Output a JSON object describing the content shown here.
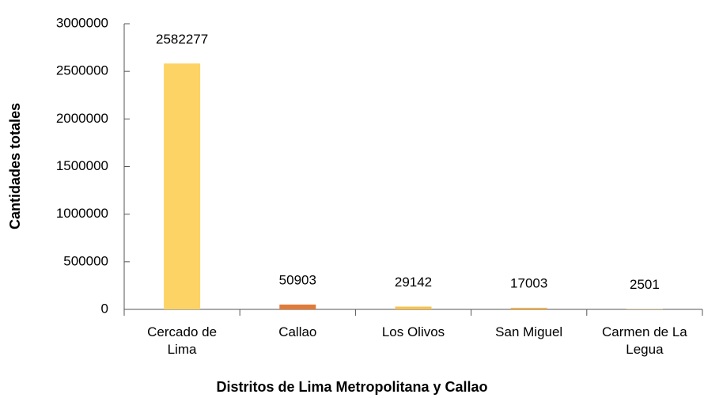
{
  "chart_data": {
    "type": "bar",
    "x_label": "Distritos de Lima Metropolitana y Callao",
    "y_label": "Cantidades totales",
    "categories": [
      "Cercado de Lima",
      "Callao",
      "Los Olivos",
      "San Miguel",
      "Carmen de La Legua"
    ],
    "values": [
      2582277,
      50903,
      29142,
      17003,
      2501
    ],
    "colors": [
      "#fdd365",
      "#e07b39",
      "#f6c24f",
      "#f2b14a",
      "#f8d35e"
    ],
    "ylim": [
      0,
      3000000
    ],
    "yticks": [
      0,
      500000,
      1000000,
      1500000,
      2000000,
      2500000,
      3000000
    ]
  }
}
